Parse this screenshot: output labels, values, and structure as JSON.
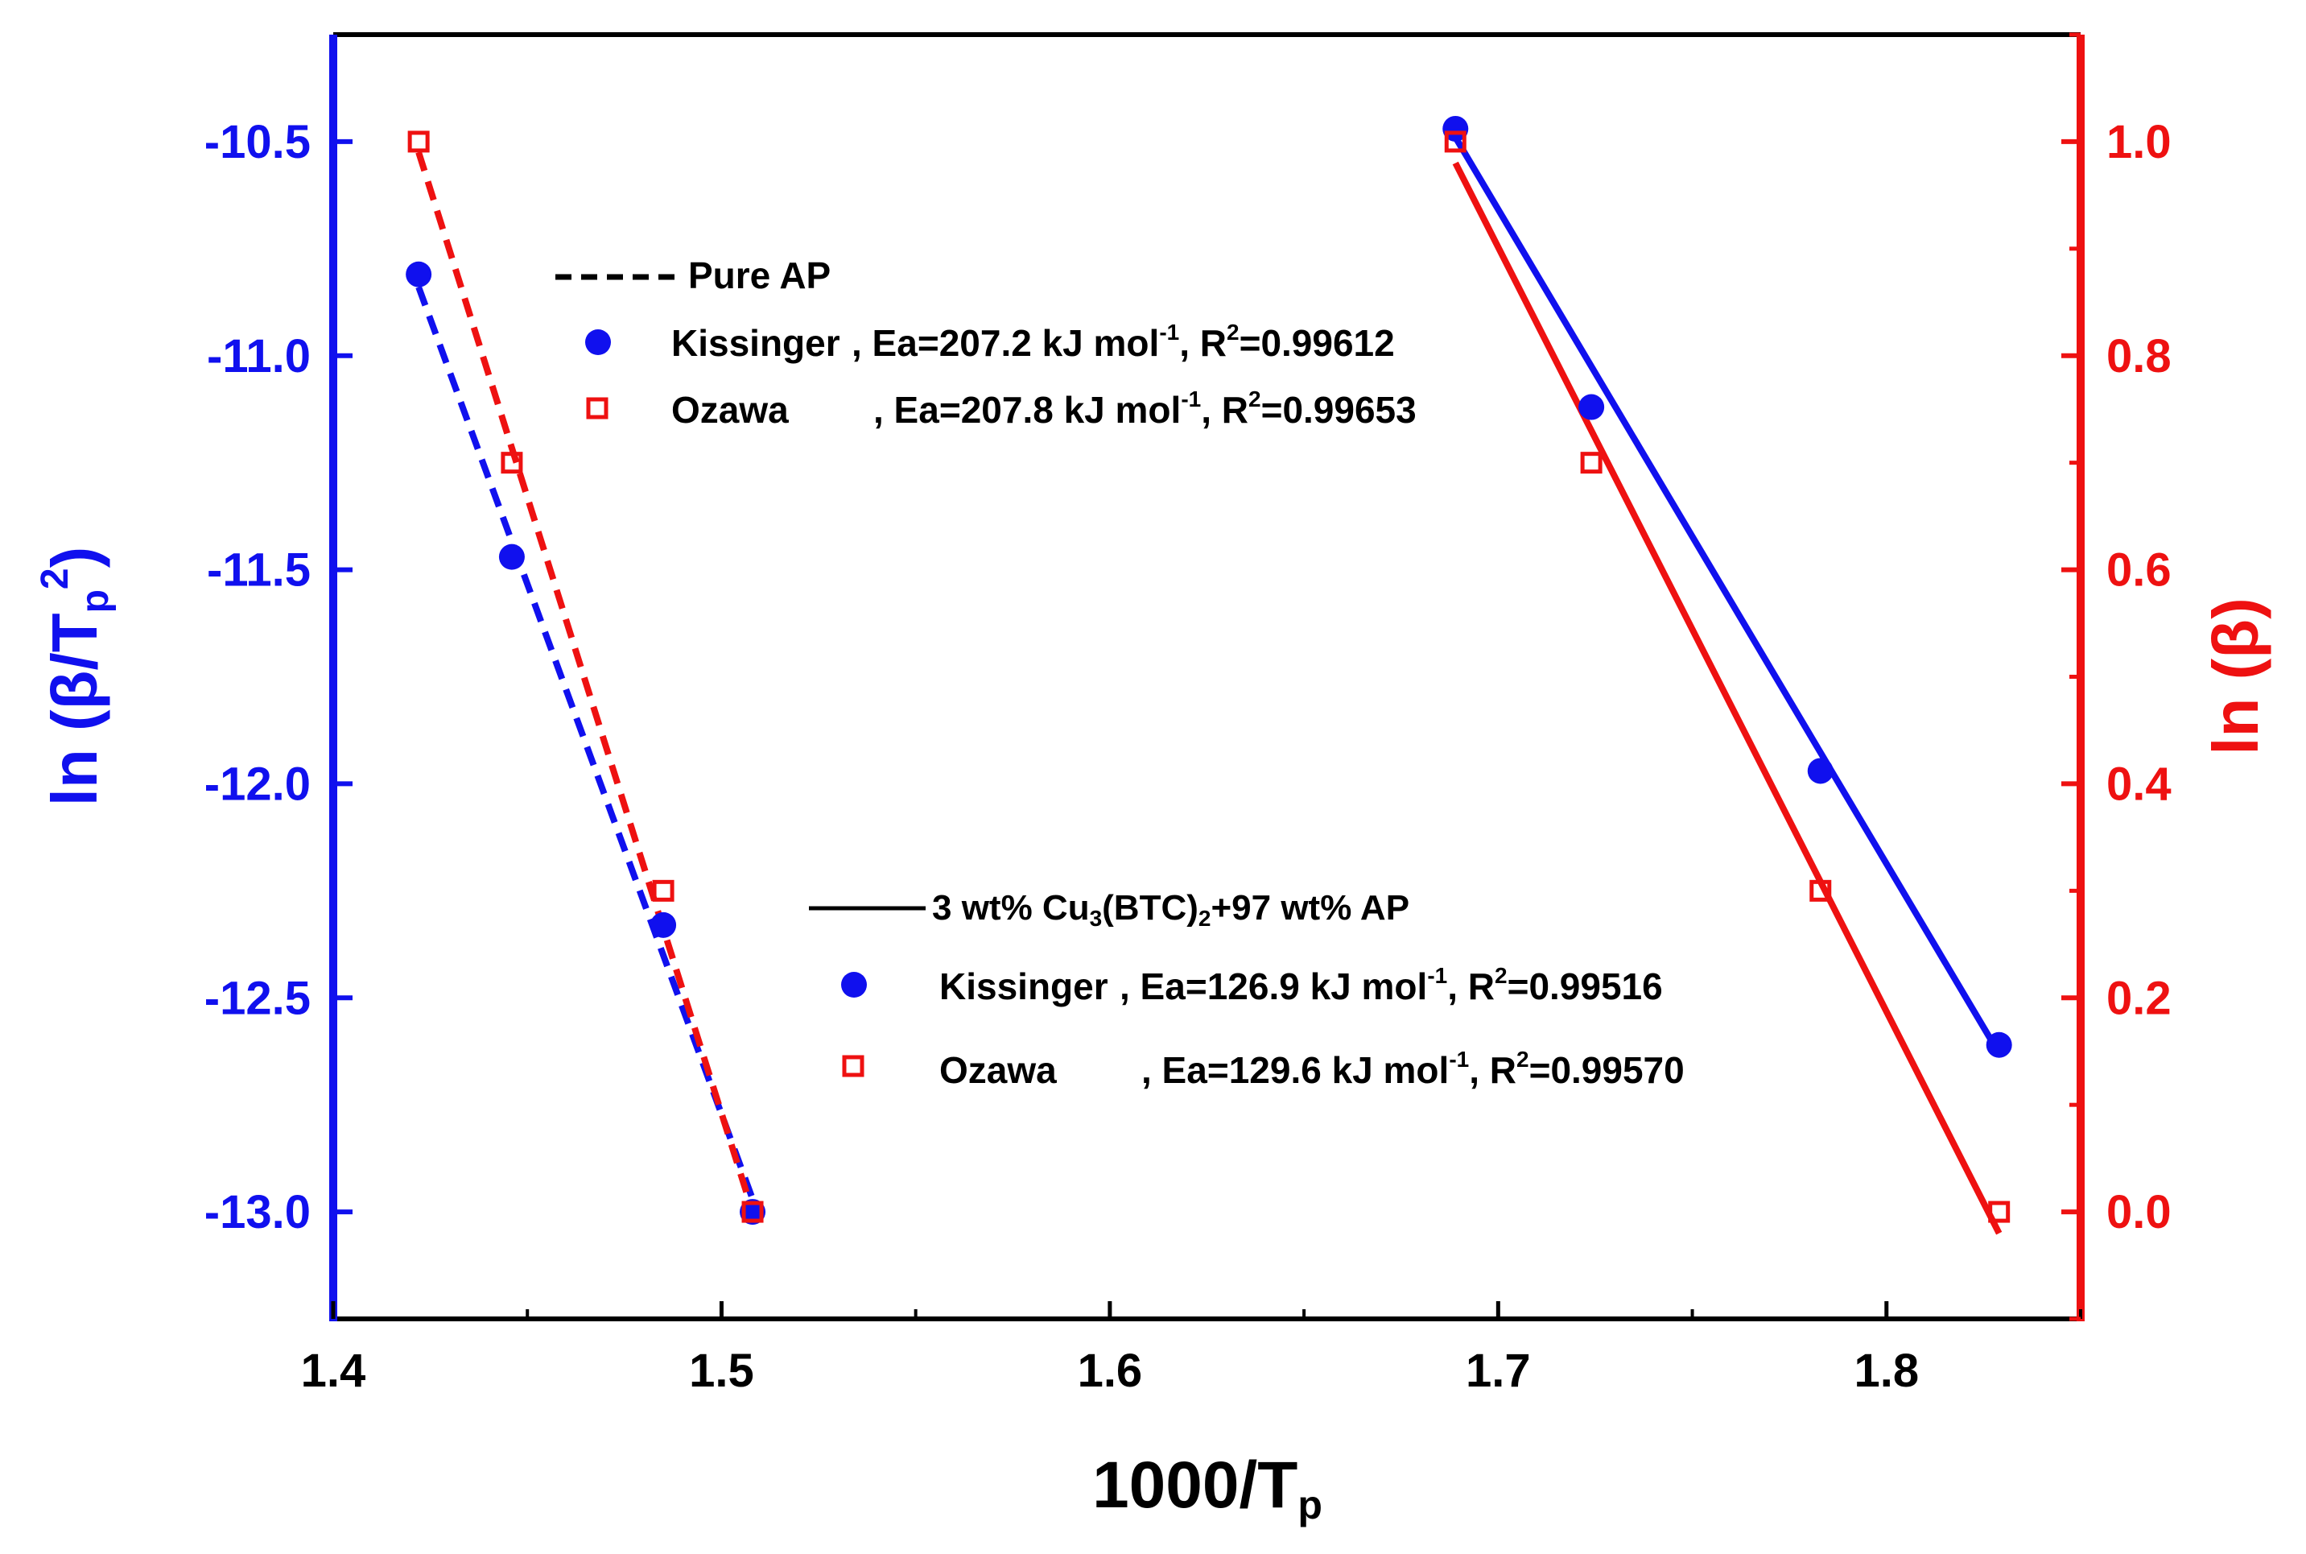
{
  "chart_data": {
    "type": "scatter",
    "xlabel": "1000/T",
    "xlabel_sub": "p",
    "ylabel_left": {
      "pre": "ln (β/T",
      "sub": "p",
      "sup": "2",
      "post": ")"
    },
    "ylabel_right": "ln (β)",
    "xlim": [
      1.4,
      1.85
    ],
    "ylim_left": [
      -13.25,
      -10.25
    ],
    "ylim_right": [
      -0.1,
      1.1
    ],
    "xticks": [
      1.4,
      1.5,
      1.6,
      1.7,
      1.8
    ],
    "xtick_labels": [
      "1.4",
      "1.5",
      "1.6",
      "1.7",
      "1.8"
    ],
    "yticks_left": [
      -13.0,
      -12.5,
      -12.0,
      -11.5,
      -11.0,
      -10.5
    ],
    "ytick_labels_left": [
      "-13.0",
      "-12.5",
      "-12.0",
      "-11.5",
      "-11.0",
      "-10.5"
    ],
    "yticks_right": [
      0.0,
      0.2,
      0.4,
      0.6,
      0.8,
      1.0
    ],
    "ytick_labels_right": [
      "0.0",
      "0.2",
      "0.4",
      "0.6",
      "0.8",
      "1.0"
    ],
    "colors": {
      "left_axis": "#1010ee",
      "right_axis": "#ee1111",
      "frame": "#000000"
    },
    "series": [
      {
        "name": "Pure AP Kissinger",
        "axis": "left",
        "marker": "circle",
        "color": "#1010ee",
        "x": [
          1.422,
          1.446,
          1.485,
          1.508
        ],
        "y": [
          -10.81,
          -11.47,
          -12.33,
          -13.0
        ]
      },
      {
        "name": "Pure AP Ozawa",
        "axis": "right",
        "marker": "square",
        "color": "#ee1111",
        "x": [
          1.422,
          1.446,
          1.485,
          1.508
        ],
        "y": [
          1.0,
          0.7,
          0.3,
          0.0
        ]
      },
      {
        "name": "3 wt% Cu3(BTC)2 Kissinger",
        "axis": "left",
        "marker": "circle",
        "color": "#1010ee",
        "x": [
          1.689,
          1.724,
          1.783,
          1.829
        ],
        "y": [
          -10.47,
          -11.12,
          -11.97,
          -12.61
        ]
      },
      {
        "name": "3 wt% Cu3(BTC)2 Ozawa",
        "axis": "right",
        "marker": "square",
        "color": "#ee1111",
        "x": [
          1.689,
          1.724,
          1.783,
          1.829
        ],
        "y": [
          1.0,
          0.7,
          0.3,
          0.0
        ]
      }
    ],
    "fits": [
      {
        "name": "Pure AP Kissinger fit",
        "axis": "left",
        "style": "dashed",
        "color": "#1010ee",
        "x": [
          1.422,
          1.508
        ],
        "y": [
          -10.84,
          -12.97
        ]
      },
      {
        "name": "Pure AP Ozawa fit",
        "axis": "right",
        "style": "dashed",
        "color": "#ee1111",
        "x": [
          1.422,
          1.508
        ],
        "y": [
          0.99,
          0.0
        ]
      },
      {
        "name": "3 wt% Kissinger fit",
        "axis": "left",
        "style": "solid",
        "color": "#1010ee",
        "x": [
          1.689,
          1.829
        ],
        "y": [
          -10.49,
          -12.63
        ]
      },
      {
        "name": "3 wt% Ozawa fit",
        "axis": "right",
        "style": "solid",
        "color": "#ee1111",
        "x": [
          1.689,
          1.829
        ],
        "y": [
          0.98,
          -0.02
        ]
      }
    ],
    "legend1": {
      "header": "Pure AP",
      "kissinger": {
        "name": "Kissinger",
        "ea": ", Ea=207.2 kJ mol",
        "sup": "-1",
        "r2": ", R",
        "r2sup": "2",
        "r2val": "=0.99612"
      },
      "ozawa": {
        "name": "Ozawa",
        "ea": ", Ea=207.8 kJ mol",
        "sup": "-1",
        "r2": ", R",
        "r2sup": "2",
        "r2val": "=0.99653"
      }
    },
    "legend2": {
      "header_pre": "3 wt% Cu",
      "header_sub1": "3",
      "header_mid": "(BTC)",
      "header_sub2": "2",
      "header_post": "+97 wt% AP",
      "kissinger": {
        "name": "Kissinger",
        "ea": ", Ea=126.9 kJ mol",
        "sup": "-1",
        "r2": ", R",
        "r2sup": "2",
        "r2val": "=0.99516"
      },
      "ozawa": {
        "name": "Ozawa",
        "ea": ", Ea=129.6 kJ mol",
        "sup": "-1",
        "r2": ", R",
        "r2sup": "2",
        "r2val": "=0.99570"
      }
    }
  }
}
